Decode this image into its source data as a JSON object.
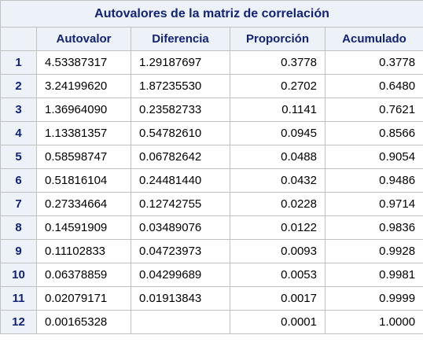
{
  "table": {
    "title": "Autovalores de la matriz de correlación",
    "headers": [
      "Autovalor",
      "Diferencia",
      "Proporción",
      "Acumulado"
    ],
    "rows": [
      {
        "n": "1",
        "autovalor": "4.53387317",
        "diferencia": "1.29187697",
        "proporcion": "0.3778",
        "acumulado": "0.3778"
      },
      {
        "n": "2",
        "autovalor": "3.24199620",
        "diferencia": "1.87235530",
        "proporcion": "0.2702",
        "acumulado": "0.6480"
      },
      {
        "n": "3",
        "autovalor": "1.36964090",
        "diferencia": "0.23582733",
        "proporcion": "0.1141",
        "acumulado": "0.7621"
      },
      {
        "n": "4",
        "autovalor": "1.13381357",
        "diferencia": "0.54782610",
        "proporcion": "0.0945",
        "acumulado": "0.8566"
      },
      {
        "n": "5",
        "autovalor": "0.58598747",
        "diferencia": "0.06782642",
        "proporcion": "0.0488",
        "acumulado": "0.9054"
      },
      {
        "n": "6",
        "autovalor": "0.51816104",
        "diferencia": "0.24481440",
        "proporcion": "0.0432",
        "acumulado": "0.9486"
      },
      {
        "n": "7",
        "autovalor": "0.27334664",
        "diferencia": "0.12742755",
        "proporcion": "0.0228",
        "acumulado": "0.9714"
      },
      {
        "n": "8",
        "autovalor": "0.14591909",
        "diferencia": "0.03489076",
        "proporcion": "0.0122",
        "acumulado": "0.9836"
      },
      {
        "n": "9",
        "autovalor": "0.11102833",
        "diferencia": "0.04723973",
        "proporcion": "0.0093",
        "acumulado": "0.9928"
      },
      {
        "n": "10",
        "autovalor": "0.06378859",
        "diferencia": "0.04299689",
        "proporcion": "0.0053",
        "acumulado": "0.9981"
      },
      {
        "n": "11",
        "autovalor": "0.02079171",
        "diferencia": "0.01913843",
        "proporcion": "0.0017",
        "acumulado": "0.9999"
      },
      {
        "n": "12",
        "autovalor": "0.00165328",
        "diferencia": "",
        "proporcion": "0.0001",
        "acumulado": "1.0000"
      }
    ]
  },
  "colors": {
    "header_bg": "#edf2f9",
    "header_text": "#112277",
    "border": "#c1c1c1"
  }
}
